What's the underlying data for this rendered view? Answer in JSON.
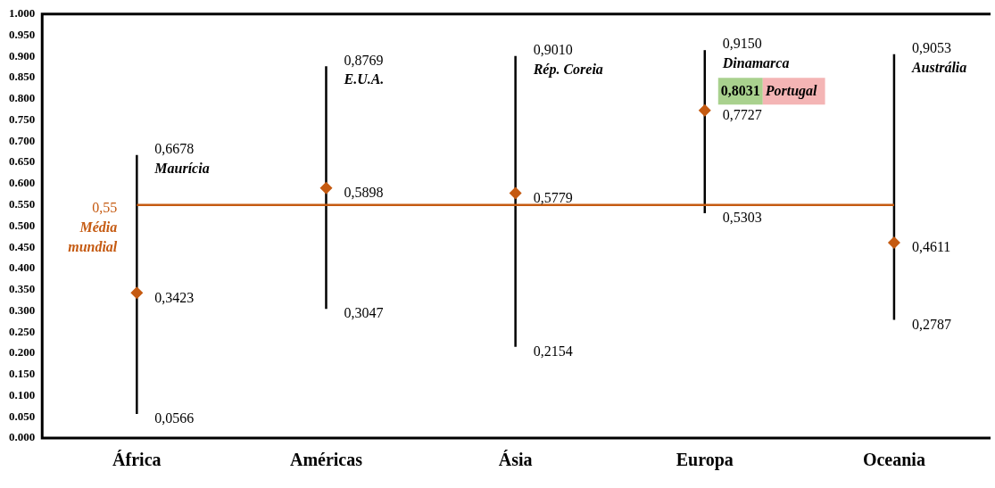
{
  "chart_data": {
    "type": "scatter",
    "categories": [
      "África",
      "Américas",
      "Ásia",
      "Europa",
      "Oceania"
    ],
    "values": [
      0.3423,
      0.5898,
      0.5779,
      0.7727,
      0.4611
    ],
    "value_labels": [
      "0,3423",
      "0,5898",
      "0,5779",
      "0,7727",
      "0,4611"
    ],
    "errors": [
      [
        0.0566,
        0.6678
      ],
      [
        0.3047,
        0.8769
      ],
      [
        0.2154,
        0.901
      ],
      [
        0.5303,
        0.915
      ],
      [
        0.2787,
        0.9053
      ]
    ],
    "color": "#c55a11",
    "marker": "diamond",
    "grid": false,
    "legend": false,
    "ylim": [
      0,
      1
    ],
    "yticks": [
      {
        "value": 0,
        "label": "0.000"
      },
      {
        "value": 0.05,
        "label": "0.050"
      },
      {
        "value": 0.1,
        "label": "0.100"
      },
      {
        "value": 0.15,
        "label": "0.150"
      },
      {
        "value": 0.2,
        "label": "0.200"
      },
      {
        "value": 0.25,
        "label": "0.250"
      },
      {
        "value": 0.3,
        "label": "0.300"
      },
      {
        "value": 0.35,
        "label": "0.350"
      },
      {
        "value": 0.4,
        "label": "0.400"
      },
      {
        "value": 0.45,
        "label": "0.450"
      },
      {
        "value": 0.5,
        "label": "0.500"
      },
      {
        "value": 0.55,
        "label": "0.550"
      },
      {
        "value": 0.6,
        "label": "0.600"
      },
      {
        "value": 0.65,
        "label": "0.650"
      },
      {
        "value": 0.7,
        "label": "0.700"
      },
      {
        "value": 0.75,
        "label": "0.750"
      },
      {
        "value": 0.8,
        "label": "0.800"
      },
      {
        "value": 0.85,
        "label": "0.850"
      },
      {
        "value": 0.9,
        "label": "0.900"
      },
      {
        "value": 0.95,
        "label": "0.950"
      },
      {
        "value": 1,
        "label": "1.000"
      }
    ],
    "ref_lines": [
      {
        "axis": "y",
        "value": 0.55,
        "label": "0,55",
        "color": "#c55a11"
      }
    ],
    "annotations": [
      "Média mundial",
      {
        "text": "0,6678",
        "x": "África",
        "y": 0.6678
      },
      {
        "text": "Maurícia",
        "x": "África",
        "y": 0.6678
      },
      {
        "text": "0,0566",
        "x": "África",
        "y": 0.0566
      },
      {
        "text": "0,8769",
        "x": "Américas",
        "y": 0.8769
      },
      {
        "text": "E.U.A.",
        "x": "Américas",
        "y": 0.8769
      },
      {
        "text": "0,3047",
        "x": "Américas",
        "y": 0.3047
      },
      {
        "text": "0,9010",
        "x": "Ásia",
        "y": 0.901
      },
      {
        "text": "Rép. Coreia",
        "x": "Ásia",
        "y": 0.901
      },
      {
        "text": "0,2154",
        "x": "Ásia",
        "y": 0.2154
      },
      {
        "text": "0,9150",
        "x": "Europa",
        "y": 0.915
      },
      {
        "text": "Dinamarca",
        "x": "Europa",
        "y": 0.915
      },
      {
        "text": "0,8031",
        "x": "Europa",
        "y": 0.8031
      },
      "Portugal",
      {
        "text": "0,5303",
        "x": "Europa",
        "y": 0.5303
      },
      {
        "text": "0,9053",
        "x": "Oceania",
        "y": 0.9053
      },
      {
        "text": "Austrália",
        "x": "Oceania",
        "y": 0.9053
      },
      {
        "text": "0,2787",
        "x": "Oceania",
        "y": 0.2787
      }
    ]
  }
}
